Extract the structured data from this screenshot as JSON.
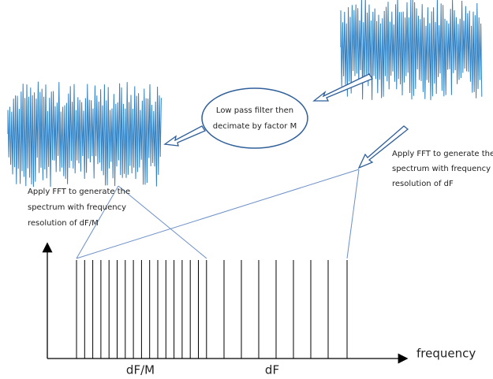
{
  "filter_node": {
    "lines": [
      "Low pass filter then",
      "decimate by factor M"
    ]
  },
  "fine_fft_note": {
    "lines": [
      "Apply FFT to generate the",
      "spectrum with frequency",
      "resolution of dF/M"
    ]
  },
  "coarse_fft_note": {
    "lines": [
      "Apply FFT to generate the",
      "spectrum with frequency",
      "resolution of dF"
    ]
  },
  "axis": {
    "x_label": "frequency"
  },
  "spacing_labels": {
    "fine": "dF/M",
    "coarse": "dF"
  }
}
